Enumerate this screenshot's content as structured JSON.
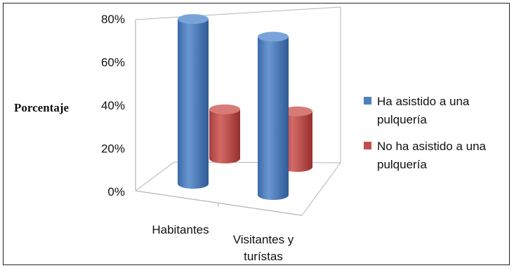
{
  "chart_data": {
    "type": "bar",
    "style": "3d-cylinder",
    "title": "",
    "xlabel": "",
    "ylabel": "Porcentaje",
    "ylim": [
      0,
      80
    ],
    "yticks": [
      "0%",
      "20%",
      "40%",
      "60%",
      "80%"
    ],
    "categories": [
      "Habitantes",
      "Visitantes y turístas"
    ],
    "category_lines": [
      [
        "Habitantes"
      ],
      [
        "Visitantes y",
        "turístas"
      ]
    ],
    "series": [
      {
        "name": "Ha asistido a una pulquería",
        "legend_lines": [
          "Ha asistido a una",
          "pulquería"
        ],
        "color": "#4f81bd",
        "values": [
          77,
          74
        ]
      },
      {
        "name": "No ha asistido a una pulquería",
        "legend_lines": [
          "No ha asistido a una",
          "pulquería"
        ],
        "color": "#c0504d",
        "values": [
          23,
          26
        ]
      }
    ],
    "legend_position": "right",
    "grid": false
  }
}
